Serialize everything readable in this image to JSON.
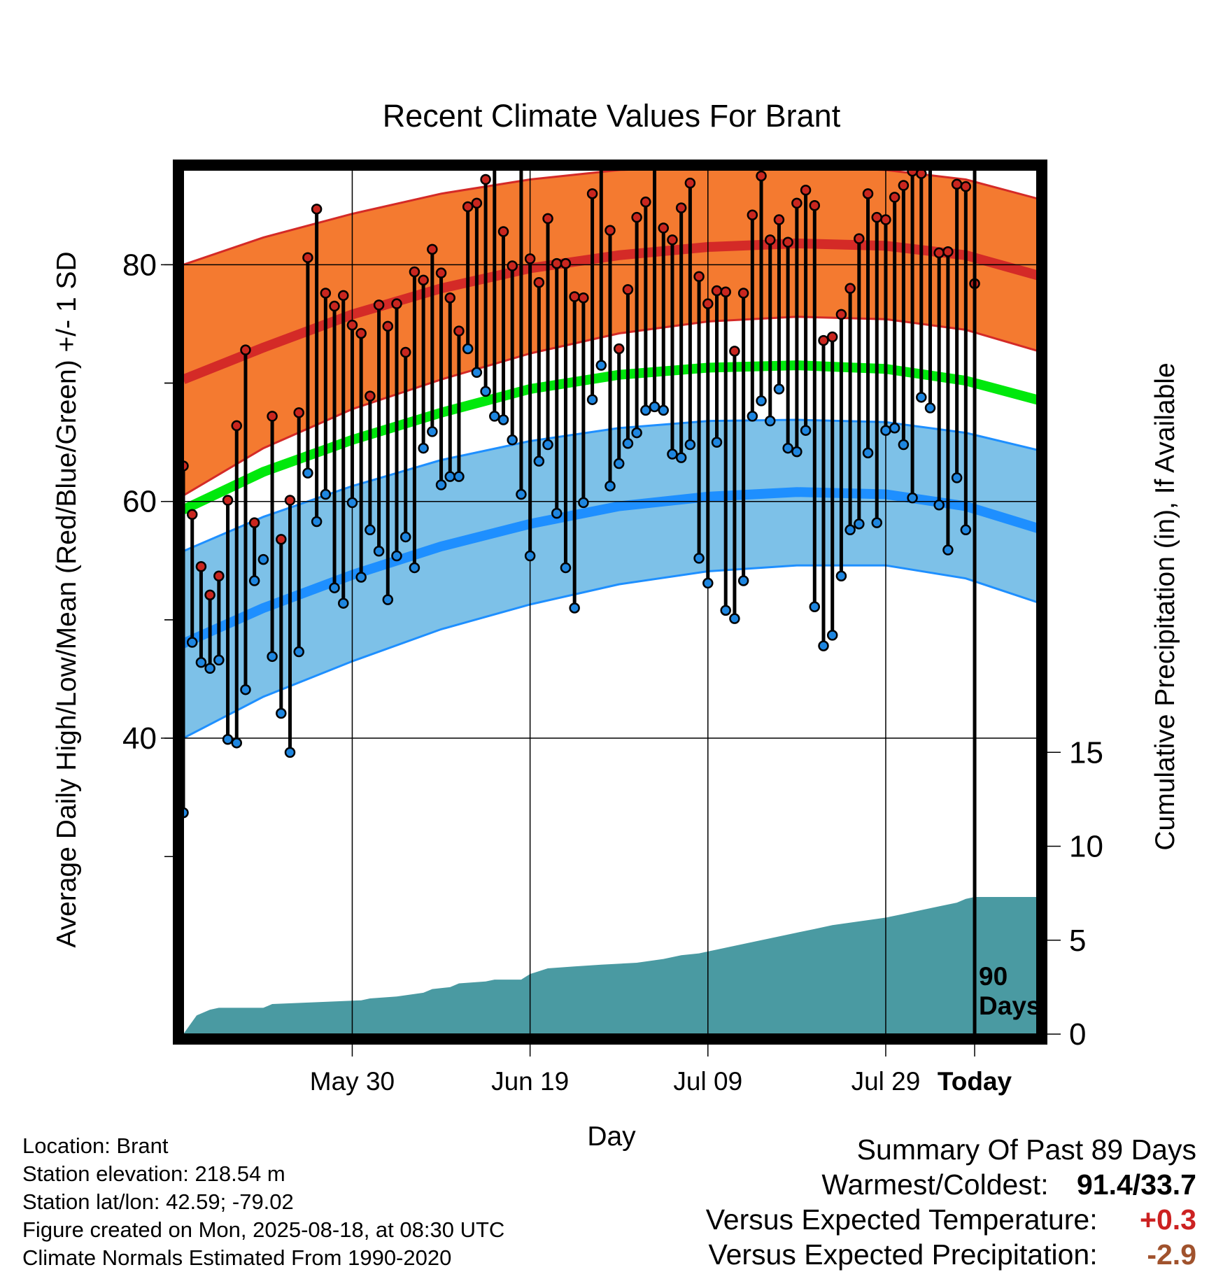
{
  "chart_data": {
    "type": "line",
    "title": "Recent Climate Values For Brant",
    "xlabel": "Day",
    "ylabel": "Average Daily High/Low/Mean (Red/Blue/Green) +/- 1 SD",
    "y2label": "Cumulative Precipitation (in), If Available",
    "x_range_days": [
      -89,
      7
    ],
    "ylim": [
      15,
      88
    ],
    "y2lim": [
      0,
      46
    ],
    "yticks": [
      40,
      60,
      80
    ],
    "y2ticks": [
      0,
      5,
      10,
      15
    ],
    "xticks": [
      {
        "day": -70,
        "label": "May 30"
      },
      {
        "day": -50,
        "label": "Jun 19"
      },
      {
        "day": -30,
        "label": "Jul 09"
      },
      {
        "day": -10,
        "label": "Jul 29"
      },
      {
        "day": 0,
        "label": "Today"
      }
    ],
    "grid": true,
    "today_label": "90\nDays",
    "normals": {
      "high_mean": [
        [
          -89,
          70.3
        ],
        [
          -80,
          73.0
        ],
        [
          -70,
          75.8
        ],
        [
          -60,
          78.0
        ],
        [
          -50,
          79.7
        ],
        [
          -40,
          80.8
        ],
        [
          -30,
          81.5
        ],
        [
          -20,
          81.8
        ],
        [
          -10,
          81.6
        ],
        [
          -1,
          80.8
        ],
        [
          9,
          78.7
        ]
      ],
      "high_upper": [
        [
          -89,
          80.0
        ],
        [
          -80,
          82.3
        ],
        [
          -70,
          84.3
        ],
        [
          -60,
          86.0
        ],
        [
          -50,
          87.2
        ],
        [
          -40,
          88.0
        ],
        [
          -30,
          88.3
        ],
        [
          -20,
          88.3
        ],
        [
          -10,
          88.0
        ],
        [
          -1,
          87.2
        ],
        [
          9,
          85.2
        ]
      ],
      "high_lower": [
        [
          -89,
          60.5
        ],
        [
          -80,
          64.5
        ],
        [
          -70,
          67.8
        ],
        [
          -60,
          70.3
        ],
        [
          -50,
          72.5
        ],
        [
          -40,
          74.2
        ],
        [
          -30,
          75.2
        ],
        [
          -20,
          75.6
        ],
        [
          -10,
          75.4
        ],
        [
          -1,
          74.5
        ],
        [
          9,
          72.3
        ]
      ],
      "mean_mean": [
        [
          -89,
          59.3
        ],
        [
          -80,
          62.5
        ],
        [
          -70,
          65.2
        ],
        [
          -60,
          67.5
        ],
        [
          -50,
          69.5
        ],
        [
          -40,
          70.7
        ],
        [
          -30,
          71.3
        ],
        [
          -20,
          71.5
        ],
        [
          -10,
          71.2
        ],
        [
          -1,
          70.2
        ],
        [
          9,
          68.2
        ]
      ],
      "low_mean": [
        [
          -89,
          48.0
        ],
        [
          -80,
          51.0
        ],
        [
          -70,
          53.8
        ],
        [
          -60,
          56.2
        ],
        [
          -50,
          58.1
        ],
        [
          -40,
          59.6
        ],
        [
          -30,
          60.4
        ],
        [
          -20,
          60.8
        ],
        [
          -10,
          60.6
        ],
        [
          -1,
          59.6
        ],
        [
          9,
          57.3
        ]
      ],
      "low_upper": [
        [
          -89,
          55.8
        ],
        [
          -80,
          58.7
        ],
        [
          -70,
          61.3
        ],
        [
          -60,
          63.5
        ],
        [
          -50,
          65.1
        ],
        [
          -40,
          66.2
        ],
        [
          -30,
          66.8
        ],
        [
          -20,
          66.9
        ],
        [
          -10,
          66.7
        ],
        [
          -1,
          65.8
        ],
        [
          9,
          64.0
        ]
      ],
      "low_lower": [
        [
          -89,
          40.0
        ],
        [
          -80,
          43.5
        ],
        [
          -70,
          46.5
        ],
        [
          -60,
          49.2
        ],
        [
          -50,
          51.3
        ],
        [
          -40,
          53.0
        ],
        [
          -30,
          54.1
        ],
        [
          -20,
          54.6
        ],
        [
          -10,
          54.6
        ],
        [
          -1,
          53.5
        ],
        [
          9,
          51.0
        ]
      ]
    },
    "highs": [
      63.0,
      58.9,
      54.5,
      52.1,
      53.7,
      60.1,
      66.4,
      72.8,
      58.2,
      null,
      67.2,
      56.8,
      60.1,
      67.5,
      80.6,
      84.7,
      77.6,
      76.5,
      77.4,
      74.9,
      74.2,
      68.9,
      76.6,
      74.8,
      76.7,
      72.6,
      79.4,
      78.7,
      81.3,
      79.3,
      77.2,
      74.4,
      84.9,
      85.2,
      87.2,
      88.9,
      82.8,
      79.9,
      89.3,
      80.5,
      78.5,
      83.9,
      80.1,
      80.1,
      77.3,
      77.2,
      86.0,
      89.0,
      82.9,
      72.9,
      77.9,
      84.0,
      85.3,
      91.4,
      83.1,
      82.1,
      84.8,
      86.9,
      79.0,
      76.7,
      77.8,
      77.7,
      72.7,
      77.6,
      84.2,
      87.5,
      82.1,
      83.8,
      81.9,
      85.2,
      86.3,
      85.0,
      73.6,
      73.9,
      75.8,
      78.0,
      82.2,
      86.0,
      84.0,
      83.8,
      85.7,
      86.7,
      87.9,
      87.7,
      88.4,
      81.0,
      81.1,
      86.8,
      86.6,
      78.4
    ],
    "lows": [
      33.7,
      48.1,
      46.4,
      45.9,
      46.6,
      39.9,
      39.6,
      44.1,
      53.3,
      55.1,
      46.9,
      42.1,
      38.8,
      47.3,
      62.4,
      58.3,
      60.6,
      52.7,
      51.4,
      59.9,
      53.6,
      57.6,
      55.8,
      51.7,
      55.4,
      57.0,
      54.4,
      64.5,
      65.9,
      61.4,
      62.1,
      62.1,
      72.9,
      70.9,
      69.3,
      67.2,
      66.9,
      65.2,
      60.6,
      55.4,
      63.4,
      64.8,
      59.0,
      54.4,
      51.0,
      59.9,
      68.6,
      71.5,
      61.3,
      63.2,
      64.9,
      65.8,
      67.7,
      68.0,
      67.7,
      64.0,
      63.7,
      64.8,
      55.2,
      53.1,
      65.0,
      50.8,
      50.1,
      53.3,
      67.2,
      68.5,
      66.8,
      69.5,
      64.5,
      64.2,
      66.0,
      51.1,
      47.8,
      48.7,
      53.7,
      57.6,
      58.1,
      64.1,
      58.2,
      66.0,
      66.2,
      64.8,
      60.3,
      68.8,
      67.9,
      59.7,
      55.9,
      62.0,
      57.6,
      null
    ],
    "precip_cumulative": [
      [
        -89,
        0.0
      ],
      [
        -87.5,
        1.0
      ],
      [
        -86,
        1.3
      ],
      [
        -85,
        1.4
      ],
      [
        -80,
        1.4
      ],
      [
        -79,
        1.6
      ],
      [
        -74,
        1.7
      ],
      [
        -69,
        1.8
      ],
      [
        -68,
        1.9
      ],
      [
        -65,
        2.0
      ],
      [
        -62,
        2.2
      ],
      [
        -61,
        2.4
      ],
      [
        -59,
        2.5
      ],
      [
        -58,
        2.7
      ],
      [
        -55,
        2.8
      ],
      [
        -54,
        2.9
      ],
      [
        -51,
        2.9
      ],
      [
        -50,
        3.2
      ],
      [
        -48,
        3.5
      ],
      [
        -45,
        3.6
      ],
      [
        -42,
        3.7
      ],
      [
        -38,
        3.8
      ],
      [
        -35,
        4.0
      ],
      [
        -33,
        4.2
      ],
      [
        -31,
        4.3
      ],
      [
        -30,
        4.4
      ],
      [
        -28,
        4.6
      ],
      [
        -26,
        4.8
      ],
      [
        -24,
        5.0
      ],
      [
        -22,
        5.2
      ],
      [
        -20,
        5.4
      ],
      [
        -18,
        5.6
      ],
      [
        -16,
        5.8
      ],
      [
        -13,
        6.0
      ],
      [
        -10,
        6.2
      ],
      [
        -8,
        6.4
      ],
      [
        -6,
        6.6
      ],
      [
        -4,
        6.8
      ],
      [
        -2,
        7.0
      ],
      [
        -1,
        7.2
      ],
      [
        0,
        7.3
      ],
      [
        9,
        7.3
      ]
    ],
    "colors": {
      "high_band": "#f47a30",
      "high_line": "#d42a27",
      "mean_line": "#00e80c",
      "low_band": "#7dc1e8",
      "low_line": "#1e8fff",
      "high_dot": "#c9261f",
      "low_dot": "#1e86e0",
      "precip": "#4a9aa2"
    }
  },
  "info": {
    "location": "Location: Brant",
    "elevation": "Station elevation: 218.54 m",
    "latlon": "Station lat/lon: 42.59; -79.02",
    "created": "Figure created on Mon, 2025-08-18, at 08:30 UTC",
    "normals": "Climate Normals Estimated From 1990-2020"
  },
  "summary": {
    "title": "Summary Of Past 89 Days",
    "warmest_label": "Warmest/Coldest:",
    "warmest_value": "91.4/33.7",
    "temp_label": "Versus Expected Temperature:",
    "temp_value": "+0.3",
    "temp_color": "#cc2222",
    "precip_label": "Versus Expected Precipitation:",
    "precip_value": "-2.9",
    "precip_color": "#a0522d"
  }
}
